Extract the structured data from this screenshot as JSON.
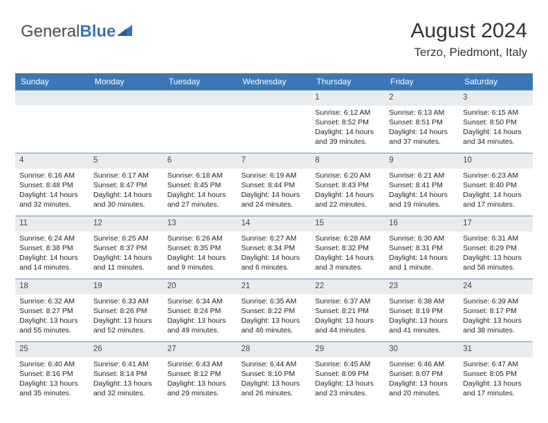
{
  "logo": {
    "text1": "General",
    "text2": "Blue"
  },
  "header": {
    "month_year": "August 2024",
    "location": "Terzo, Piedmont, Italy"
  },
  "colors": {
    "header_bg": "#3a78b5",
    "header_text": "#ffffff",
    "daynum_bg": "#e9ecef",
    "border": "#6a8fb0",
    "logo_blue": "#3a74b8"
  },
  "weekdays": [
    "Sunday",
    "Monday",
    "Tuesday",
    "Wednesday",
    "Thursday",
    "Friday",
    "Saturday"
  ],
  "weeks": [
    [
      null,
      null,
      null,
      null,
      {
        "n": "1",
        "sr": "6:12 AM",
        "ss": "8:52 PM",
        "dl": "14 hours and 39 minutes."
      },
      {
        "n": "2",
        "sr": "6:13 AM",
        "ss": "8:51 PM",
        "dl": "14 hours and 37 minutes."
      },
      {
        "n": "3",
        "sr": "6:15 AM",
        "ss": "8:50 PM",
        "dl": "14 hours and 34 minutes."
      }
    ],
    [
      {
        "n": "4",
        "sr": "6:16 AM",
        "ss": "8:48 PM",
        "dl": "14 hours and 32 minutes."
      },
      {
        "n": "5",
        "sr": "6:17 AM",
        "ss": "8:47 PM",
        "dl": "14 hours and 30 minutes."
      },
      {
        "n": "6",
        "sr": "6:18 AM",
        "ss": "8:45 PM",
        "dl": "14 hours and 27 minutes."
      },
      {
        "n": "7",
        "sr": "6:19 AM",
        "ss": "8:44 PM",
        "dl": "14 hours and 24 minutes."
      },
      {
        "n": "8",
        "sr": "6:20 AM",
        "ss": "8:43 PM",
        "dl": "14 hours and 22 minutes."
      },
      {
        "n": "9",
        "sr": "6:21 AM",
        "ss": "8:41 PM",
        "dl": "14 hours and 19 minutes."
      },
      {
        "n": "10",
        "sr": "6:23 AM",
        "ss": "8:40 PM",
        "dl": "14 hours and 17 minutes."
      }
    ],
    [
      {
        "n": "11",
        "sr": "6:24 AM",
        "ss": "8:38 PM",
        "dl": "14 hours and 14 minutes."
      },
      {
        "n": "12",
        "sr": "6:25 AM",
        "ss": "8:37 PM",
        "dl": "14 hours and 11 minutes."
      },
      {
        "n": "13",
        "sr": "6:26 AM",
        "ss": "8:35 PM",
        "dl": "14 hours and 9 minutes."
      },
      {
        "n": "14",
        "sr": "6:27 AM",
        "ss": "8:34 PM",
        "dl": "14 hours and 6 minutes."
      },
      {
        "n": "15",
        "sr": "6:28 AM",
        "ss": "8:32 PM",
        "dl": "14 hours and 3 minutes."
      },
      {
        "n": "16",
        "sr": "6:30 AM",
        "ss": "8:31 PM",
        "dl": "14 hours and 1 minute."
      },
      {
        "n": "17",
        "sr": "6:31 AM",
        "ss": "8:29 PM",
        "dl": "13 hours and 58 minutes."
      }
    ],
    [
      {
        "n": "18",
        "sr": "6:32 AM",
        "ss": "8:27 PM",
        "dl": "13 hours and 55 minutes."
      },
      {
        "n": "19",
        "sr": "6:33 AM",
        "ss": "8:26 PM",
        "dl": "13 hours and 52 minutes."
      },
      {
        "n": "20",
        "sr": "6:34 AM",
        "ss": "8:24 PM",
        "dl": "13 hours and 49 minutes."
      },
      {
        "n": "21",
        "sr": "6:35 AM",
        "ss": "8:22 PM",
        "dl": "13 hours and 46 minutes."
      },
      {
        "n": "22",
        "sr": "6:37 AM",
        "ss": "8:21 PM",
        "dl": "13 hours and 44 minutes."
      },
      {
        "n": "23",
        "sr": "6:38 AM",
        "ss": "8:19 PM",
        "dl": "13 hours and 41 minutes."
      },
      {
        "n": "24",
        "sr": "6:39 AM",
        "ss": "8:17 PM",
        "dl": "13 hours and 38 minutes."
      }
    ],
    [
      {
        "n": "25",
        "sr": "6:40 AM",
        "ss": "8:16 PM",
        "dl": "13 hours and 35 minutes."
      },
      {
        "n": "26",
        "sr": "6:41 AM",
        "ss": "8:14 PM",
        "dl": "13 hours and 32 minutes."
      },
      {
        "n": "27",
        "sr": "6:43 AM",
        "ss": "8:12 PM",
        "dl": "13 hours and 29 minutes."
      },
      {
        "n": "28",
        "sr": "6:44 AM",
        "ss": "8:10 PM",
        "dl": "13 hours and 26 minutes."
      },
      {
        "n": "29",
        "sr": "6:45 AM",
        "ss": "8:09 PM",
        "dl": "13 hours and 23 minutes."
      },
      {
        "n": "30",
        "sr": "6:46 AM",
        "ss": "8:07 PM",
        "dl": "13 hours and 20 minutes."
      },
      {
        "n": "31",
        "sr": "6:47 AM",
        "ss": "8:05 PM",
        "dl": "13 hours and 17 minutes."
      }
    ]
  ]
}
